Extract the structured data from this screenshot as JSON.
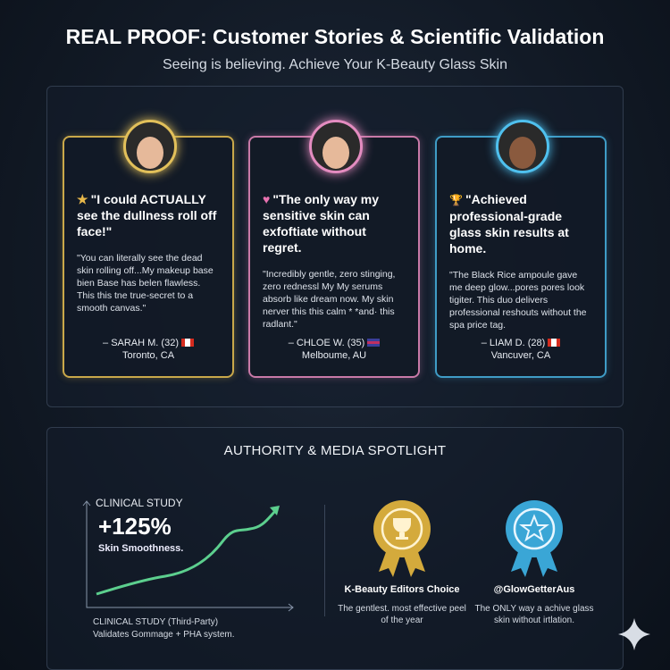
{
  "header": {
    "title": "REAL PROOF: Customer Stories & Scientific Validation",
    "subtitle": "Seeing is believing. Achieve Your K-Beauty Glass Skin"
  },
  "testimonials": [
    {
      "icon": "star-icon",
      "icon_char": "★",
      "icon_color": "#e8b84a",
      "headline": "\"I could ACTUALLY see the dullness roll off face!\"",
      "quote": "\"You can literally see the dead skin rolling off...My makeup base bien Base has belen flawless. This this tne true-secret to a smooth canvas.\"",
      "author": "– SARAH M. (32)",
      "location": "Toronto, CA",
      "flag": "canada",
      "accent": "#c9a84a"
    },
    {
      "icon": "heart-icon",
      "icon_char": "♥",
      "icon_color": "#e872b0",
      "headline": "\"The only way my sensitive skin can exfoftiate without regret.",
      "quote": "\"Incredibly gentle, zero stinging, zero rednessl My My serums absorb like dream now. My skin nerver  this this calm * *and· this radlant.\"",
      "author": "– CHLOE W. (35)",
      "location": "Melboume, AU",
      "flag": "uk",
      "accent": "#c97aa8"
    },
    {
      "icon": "trophy-icon",
      "icon_char": "🏆",
      "icon_color": "#e8b84a",
      "headline": "\"Achieved professional-grade glass skin results at home.",
      "quote": "\"The Black Rice ampoule gave me deep glow...pores pores look tigiter. This duo delivers professional reshouts without the spa price tag.",
      "author": "– LIAM D. (28)",
      "location": "Vancuver, CA",
      "flag": "canada",
      "accent": "#3f9cc6"
    }
  ],
  "spotlight": {
    "heading": "AUTHORITY & MEDIA SPOTLIGHT",
    "clinical": {
      "label": "CLINICAL STUDY",
      "value": "+125%",
      "metric": "Skin Smoothness.",
      "footnote_line1": "CLINICAL STUDY (Third-Party)",
      "footnote_line2": "Validates Gommage + PHA system.",
      "line_color": "#5ccf8e"
    },
    "badges": [
      {
        "icon": "trophy-rosette-icon",
        "color": "#d4aa3c",
        "title": "K-Beauty Editors Choice",
        "desc": "The gentlest. most effective peel of the year"
      },
      {
        "icon": "star-rosette-icon",
        "color": "#3aa6d6",
        "title": "@GlowGetterAus",
        "desc": "The ONLY way a achive glass skin without irtlation."
      }
    ]
  }
}
